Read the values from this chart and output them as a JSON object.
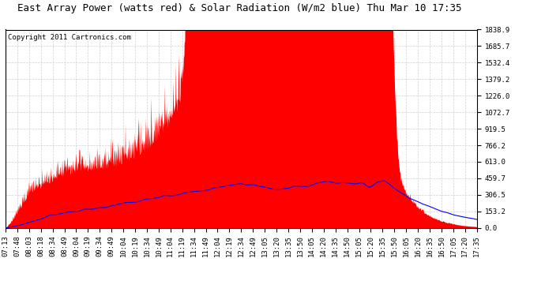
{
  "title": "East Array Power (watts red) & Solar Radiation (W/m2 blue) Thu Mar 10 17:35",
  "copyright": "Copyright 2011 Cartronics.com",
  "ymax": 1838.9,
  "yticks": [
    0.0,
    153.2,
    306.5,
    459.7,
    613.0,
    766.2,
    919.5,
    1072.7,
    1226.0,
    1379.2,
    1532.4,
    1685.7,
    1838.9
  ],
  "red_color": "#FF0000",
  "blue_color": "#0000FF",
  "bg_color": "#FFFFFF",
  "grid_color": "#CCCCCC",
  "title_fontsize": 9,
  "copyright_fontsize": 6.5,
  "tick_fontsize": 6.5,
  "xtick_labels": [
    "07:13",
    "07:48",
    "08:03",
    "08:18",
    "08:34",
    "08:49",
    "09:04",
    "09:19",
    "09:34",
    "09:49",
    "10:04",
    "10:19",
    "10:34",
    "10:49",
    "11:04",
    "11:19",
    "11:34",
    "11:49",
    "12:04",
    "12:19",
    "12:34",
    "12:49",
    "13:05",
    "13:20",
    "13:35",
    "13:50",
    "14:05",
    "14:20",
    "14:35",
    "14:50",
    "15:05",
    "15:20",
    "15:35",
    "15:50",
    "16:05",
    "16:20",
    "16:35",
    "16:50",
    "17:05",
    "17:20",
    "17:35"
  ]
}
